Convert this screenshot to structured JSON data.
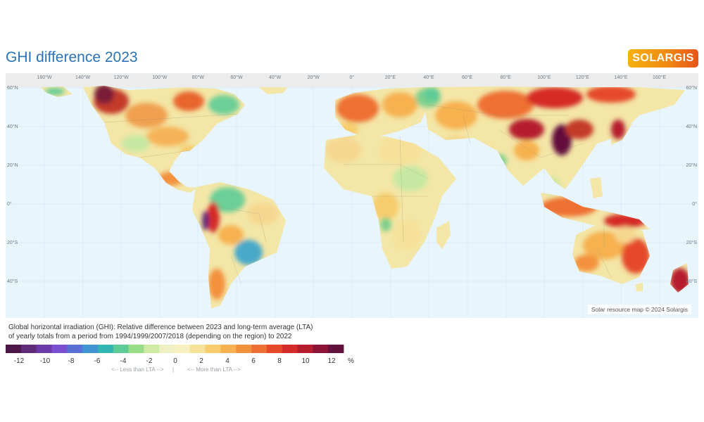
{
  "header": {
    "title": "GHI difference 2023",
    "logo_text": "SOLARGIS"
  },
  "map": {
    "credit": "Solar resource map © 2024 Solargis",
    "longitude_labels": [
      "160°W",
      "140°W",
      "120°W",
      "100°W",
      "80°W",
      "60°W",
      "40°W",
      "20°W",
      "0°",
      "20°E",
      "40°E",
      "60°E",
      "80°E",
      "100°E",
      "120°E",
      "140°E",
      "160°E"
    ],
    "latitude_labels": [
      "60°N",
      "40°N",
      "20°N",
      "0°",
      "20°S",
      "40°S"
    ],
    "colors": {
      "ocean": "#e9f5fd",
      "polar": "#ececec",
      "land_base": "#f3e6a6"
    }
  },
  "caption": {
    "line1": "Global horizontal irradiation (GHI): Relative difference between 2023 and long-term average (LTA)",
    "line2": "of yearly totals from a period from 1994/1999/2007/2018 (depending on the region) to 2022"
  },
  "legend": {
    "unit": "%",
    "tick_labels": [
      "-12",
      "-10",
      "-8",
      "-6",
      "-4",
      "-2",
      "0",
      "2",
      "4",
      "6",
      "8",
      "10",
      "12"
    ],
    "colors": [
      "#4b1646",
      "#5e2a7a",
      "#6c3aa8",
      "#7a4ed0",
      "#5a6fd6",
      "#3f93d0",
      "#35b4b4",
      "#5ecc96",
      "#98dc86",
      "#cfeaa4",
      "#eef0c4",
      "#f6efbf",
      "#f6e199",
      "#f7cc6c",
      "#f7b14f",
      "#f3913c",
      "#ee6f33",
      "#e5492a",
      "#d52b28",
      "#b51c2d",
      "#8c1437",
      "#64103c"
    ],
    "less_hint": "<-- Less than LTA -->",
    "divider": "|",
    "more_hint": "<-- More than LTA -->"
  }
}
